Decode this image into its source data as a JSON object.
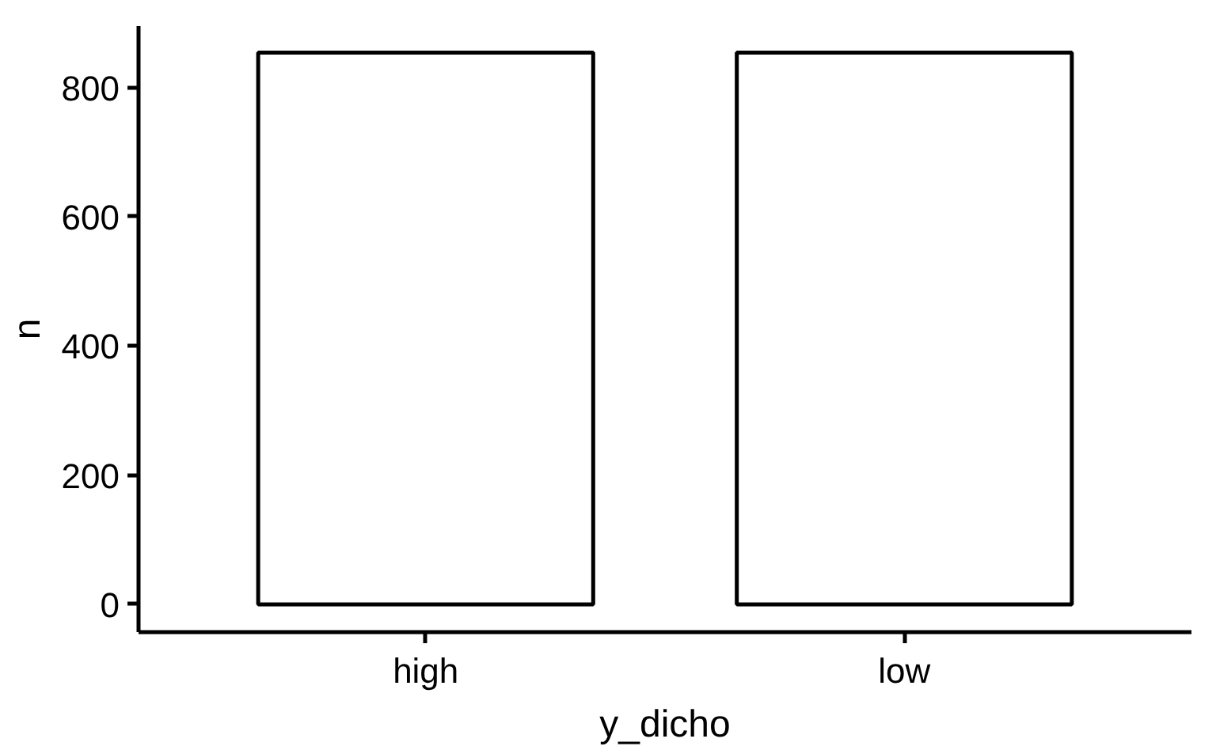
{
  "chart_data": {
    "type": "bar",
    "xlabel": "y_dicho",
    "ylabel": "n",
    "categories": [
      "high",
      "low"
    ],
    "values": [
      854,
      854
    ],
    "color": "#ffffff",
    "ylim": [
      -43,
      895
    ],
    "yticks": [
      0,
      200,
      400,
      600,
      800
    ],
    "grid": false
  }
}
